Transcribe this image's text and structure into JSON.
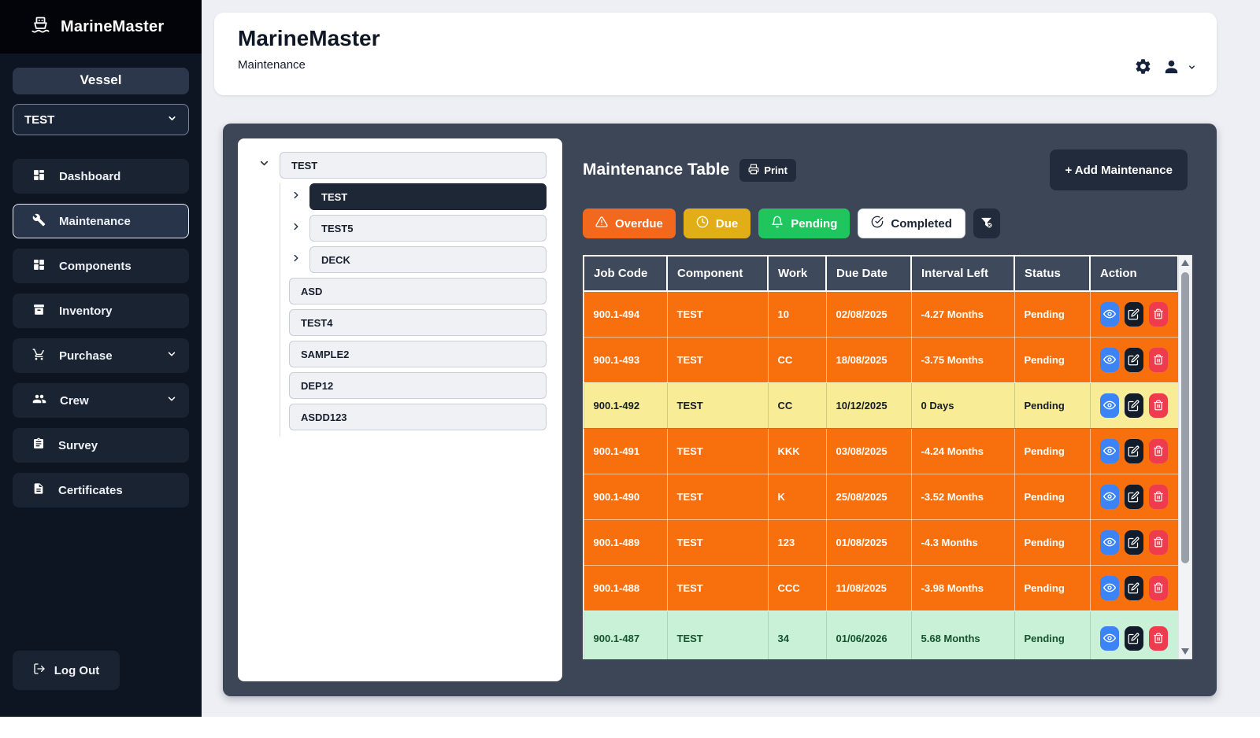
{
  "sidebar": {
    "brand": "MarineMaster",
    "vessel_label": "Vessel",
    "vessel_selected": "TEST",
    "nav": [
      {
        "label": "Dashboard"
      },
      {
        "label": "Maintenance"
      },
      {
        "label": "Components"
      },
      {
        "label": "Inventory"
      },
      {
        "label": "Purchase"
      },
      {
        "label": "Crew"
      },
      {
        "label": "Survey"
      },
      {
        "label": "Certificates"
      }
    ],
    "logout_label": "Log Out"
  },
  "header": {
    "title": "MarineMaster",
    "subtitle": "Maintenance"
  },
  "tree": {
    "root_label": "TEST",
    "expandable": [
      {
        "label": "TEST",
        "selected": true
      },
      {
        "label": "TEST5",
        "selected": false
      },
      {
        "label": "DECK",
        "selected": false
      }
    ],
    "plain": [
      "ASD",
      "TEST4",
      "SAMPLE2",
      "DEP12",
      "ASDD123"
    ]
  },
  "panel": {
    "title": "Maintenance Table",
    "print_label": "Print",
    "add_button_label": "+ Add Maintenance",
    "filters": [
      {
        "label": "Overdue"
      },
      {
        "label": "Due"
      },
      {
        "label": "Pending"
      },
      {
        "label": "Completed"
      }
    ]
  },
  "table": {
    "columns": [
      "Job Code",
      "Component",
      "Work",
      "Due Date",
      "Interval Left",
      "Status",
      "Action"
    ],
    "rows": [
      {
        "job_code": "900.1-494",
        "component": "TEST",
        "work": "10",
        "due_date": "02/08/2025",
        "interval_left": "-4.27 Months",
        "status": "Pending",
        "tone": "overdue"
      },
      {
        "job_code": "900.1-493",
        "component": "TEST",
        "work": "CC",
        "due_date": "18/08/2025",
        "interval_left": "-3.75 Months",
        "status": "Pending",
        "tone": "overdue"
      },
      {
        "job_code": "900.1-492",
        "component": "TEST",
        "work": "CC",
        "due_date": "10/12/2025",
        "interval_left": "0 Days",
        "status": "Pending",
        "tone": "due"
      },
      {
        "job_code": "900.1-491",
        "component": "TEST",
        "work": "KKK",
        "due_date": "03/08/2025",
        "interval_left": "-4.24 Months",
        "status": "Pending",
        "tone": "overdue"
      },
      {
        "job_code": "900.1-490",
        "component": "TEST",
        "work": "K",
        "due_date": "25/08/2025",
        "interval_left": "-3.52 Months",
        "status": "Pending",
        "tone": "overdue"
      },
      {
        "job_code": "900.1-489",
        "component": "TEST",
        "work": "123",
        "due_date": "01/08/2025",
        "interval_left": "-4.3 Months",
        "status": "Pending",
        "tone": "overdue"
      },
      {
        "job_code": "900.1-488",
        "component": "TEST",
        "work": "CCC",
        "due_date": "11/08/2025",
        "interval_left": "-3.98 Months",
        "status": "Pending",
        "tone": "overdue"
      },
      {
        "job_code": "900.1-487",
        "component": "TEST",
        "work": "34",
        "due_date": "01/06/2026",
        "interval_left": "5.68 Months",
        "status": "Pending",
        "tone": "completed"
      }
    ]
  },
  "colors": {
    "sidebar_bg": "#0d1422",
    "card_bg": "#3d4657",
    "overdue_row": "#f8700d",
    "due_row": "#f9ec96",
    "completed_row": "#c8f1d7",
    "overdue_btn": "#f2691e",
    "due_btn": "#e2ae17",
    "pending_btn": "#21c55d",
    "view_btn": "#3c83f6",
    "edit_btn": "#131c2a",
    "delete_btn": "#ee3c4e"
  }
}
